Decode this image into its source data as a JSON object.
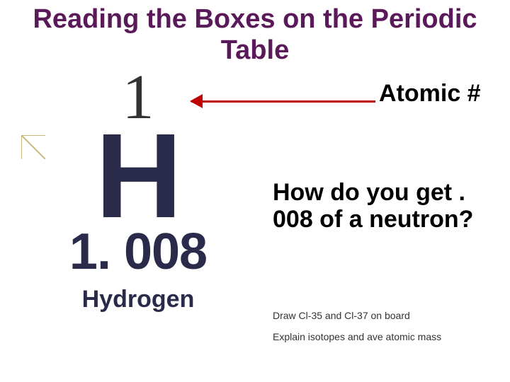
{
  "title": {
    "text": "Reading the Boxes on the Periodic Table",
    "color": "#5a1a5a",
    "fontsize": 38
  },
  "element": {
    "atomic_number": "1",
    "atomic_number_fontsize": 90,
    "atomic_number_color": "#333333",
    "symbol": "H",
    "symbol_fontsize": 170,
    "symbol_color": "#2a2a4a",
    "mass": "1. 008",
    "mass_fontsize": 72,
    "mass_color": "#2a2a4a",
    "name": "Hydrogen",
    "name_fontsize": 34,
    "name_color": "#2a2a4a"
  },
  "arrow": {
    "color": "#c00000",
    "line_width": 3,
    "head_size": 18
  },
  "labels": {
    "atomic": "Atomic #",
    "atomic_fontsize": 34,
    "atomic_color": "#000000",
    "question": "How do you get . 008 of a neutron?",
    "question_fontsize": 34,
    "question_color": "#000000",
    "note1": "Draw Cl-35 and Cl-37 on board",
    "note2": "Explain isotopes and ave atomic mass",
    "note_fontsize": 14,
    "note_color": "#333333"
  },
  "corner": {
    "stroke": "#c9b87a",
    "width": 2
  },
  "background_color": "#ffffff"
}
